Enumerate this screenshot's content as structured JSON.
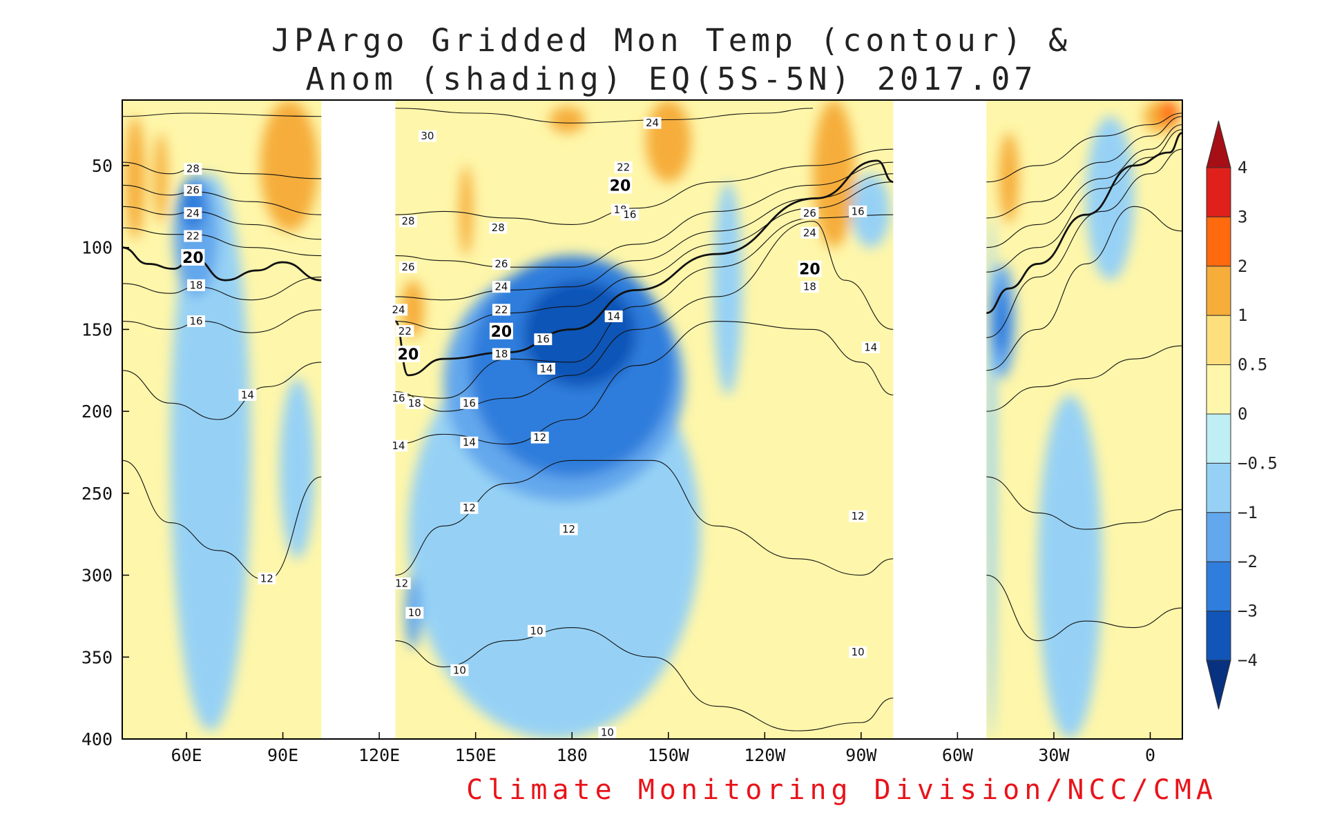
{
  "chart_data": {
    "type": "heatmap",
    "title_lines": [
      "JPArgo Gridded Mon Temp (contour) &",
      "Anom (shading) EQ(5S-5N) 2017.07"
    ],
    "credit": "Climate Monitoring Division/NCC/CMA",
    "x_axis": {
      "ticks": [
        {
          "lon": 60,
          "label": "60E"
        },
        {
          "lon": 90,
          "label": "90E"
        },
        {
          "lon": 120,
          "label": "120E"
        },
        {
          "lon": 150,
          "label": "150E"
        },
        {
          "lon": 180,
          "label": "180"
        },
        {
          "lon": 210,
          "label": "150W"
        },
        {
          "lon": 240,
          "label": "120W"
        },
        {
          "lon": 270,
          "label": "90W"
        },
        {
          "lon": 300,
          "label": "60W"
        },
        {
          "lon": 330,
          "label": "30W"
        },
        {
          "lon": 360,
          "label": "0"
        }
      ],
      "range": [
        40,
        370
      ],
      "land_gaps_lon": [
        [
          102,
          125
        ],
        [
          280,
          309
        ]
      ]
    },
    "y_axis": {
      "ticks": [
        50,
        100,
        150,
        200,
        250,
        300,
        350,
        400
      ],
      "range": [
        10,
        400
      ],
      "inverted": true
    },
    "colorbar": {
      "labels": [
        "4",
        "3",
        "2",
        "1",
        "0.5",
        "0",
        "−0.5",
        "−1",
        "−2",
        "−3",
        "−4"
      ],
      "colors": [
        "#a50f15",
        "#e0201b",
        "#ff6a0f",
        "#f6ad3a",
        "#fddf7e",
        "#fef6aa",
        "#bfeef5",
        "#96d1f5",
        "#63a7ec",
        "#2f7ddc",
        "#1055b7",
        "#08317f"
      ]
    },
    "contours": {
      "levels": [
        30,
        28,
        26,
        24,
        22,
        20,
        18,
        16,
        14,
        12,
        10
      ],
      "labels": [
        {
          "text": "30",
          "lon": 135,
          "depth": 32
        },
        {
          "text": "28",
          "lon": 62,
          "depth": 52
        },
        {
          "text": "26",
          "lon": 62,
          "depth": 65
        },
        {
          "text": "24",
          "lon": 62,
          "depth": 79
        },
        {
          "text": "22",
          "lon": 62,
          "depth": 93
        },
        {
          "text": "20",
          "lon": 62,
          "depth": 106
        },
        {
          "text": "18",
          "lon": 63,
          "depth": 123
        },
        {
          "text": "16",
          "lon": 63,
          "depth": 145
        },
        {
          "text": "14",
          "lon": 79,
          "depth": 190
        },
        {
          "text": "12",
          "lon": 85,
          "depth": 302
        },
        {
          "text": "28",
          "lon": 129,
          "depth": 84
        },
        {
          "text": "26",
          "lon": 129,
          "depth": 112
        },
        {
          "text": "24",
          "lon": 126,
          "depth": 138
        },
        {
          "text": "22",
          "lon": 128,
          "depth": 151
        },
        {
          "text": "20",
          "lon": 129,
          "depth": 165
        },
        {
          "text": "16",
          "lon": 126,
          "depth": 192
        },
        {
          "text": "18",
          "lon": 131,
          "depth": 195
        },
        {
          "text": "14",
          "lon": 126,
          "depth": 221
        },
        {
          "text": "12",
          "lon": 127,
          "depth": 305
        },
        {
          "text": "10",
          "lon": 131,
          "depth": 323
        },
        {
          "text": "10",
          "lon": 145,
          "depth": 358
        },
        {
          "text": "16",
          "lon": 148,
          "depth": 195
        },
        {
          "text": "14",
          "lon": 148,
          "depth": 219
        },
        {
          "text": "12",
          "lon": 148,
          "depth": 259
        },
        {
          "text": "28",
          "lon": 157,
          "depth": 88
        },
        {
          "text": "26",
          "lon": 158,
          "depth": 110
        },
        {
          "text": "24",
          "lon": 158,
          "depth": 124
        },
        {
          "text": "22",
          "lon": 158,
          "depth": 138
        },
        {
          "text": "20",
          "lon": 158,
          "depth": 151
        },
        {
          "text": "18",
          "lon": 158,
          "depth": 165
        },
        {
          "text": "16",
          "lon": 171,
          "depth": 156
        },
        {
          "text": "14",
          "lon": 172,
          "depth": 174
        },
        {
          "text": "12",
          "lon": 170,
          "depth": 216
        },
        {
          "text": "10",
          "lon": 169,
          "depth": 334
        },
        {
          "text": "24",
          "lon": 205,
          "depth": 24
        },
        {
          "text": "22",
          "lon": 196,
          "depth": 51
        },
        {
          "text": "20",
          "lon": 195,
          "depth": 62
        },
        {
          "text": "18",
          "lon": 195,
          "depth": 77
        },
        {
          "text": "16",
          "lon": 198,
          "depth": 80
        },
        {
          "text": "14",
          "lon": 193,
          "depth": 142
        },
        {
          "text": "12",
          "lon": 179,
          "depth": 272
        },
        {
          "text": "10",
          "lon": 191,
          "depth": 396
        },
        {
          "text": "26",
          "lon": 254,
          "depth": 79
        },
        {
          "text": "24",
          "lon": 254,
          "depth": 91
        },
        {
          "text": "20",
          "lon": 254,
          "depth": 113
        },
        {
          "text": "18",
          "lon": 254,
          "depth": 124
        },
        {
          "text": "16",
          "lon": 269,
          "depth": 78
        },
        {
          "text": "14",
          "lon": 273,
          "depth": 161
        },
        {
          "text": "12",
          "lon": 269,
          "depth": 264
        },
        {
          "text": "10",
          "lon": 269,
          "depth": 347
        }
      ]
    },
    "anomaly_regions": [
      {
        "level": 1,
        "lon": [
          41,
          47
        ],
        "depth": [
          20,
          95
        ]
      },
      {
        "level": 1,
        "lon": [
          50,
          54
        ],
        "depth": [
          30,
          85
        ]
      },
      {
        "level": 1,
        "lon": [
          83,
          101
        ],
        "depth": [
          10,
          90
        ]
      },
      {
        "level": 1,
        "lon": [
          127,
          134
        ],
        "depth": [
          120,
          155
        ]
      },
      {
        "level": 1,
        "lon": [
          145,
          149
        ],
        "depth": [
          50,
          105
        ]
      },
      {
        "level": 1,
        "lon": [
          173,
          184
        ],
        "depth": [
          14,
          30
        ]
      },
      {
        "level": 1,
        "lon": [
          203,
          217
        ],
        "depth": [
          10,
          60
        ]
      },
      {
        "level": 1,
        "lon": [
          255,
          268
        ],
        "depth": [
          10,
          100
        ]
      },
      {
        "level": 1,
        "lon": [
          313,
          319
        ],
        "depth": [
          30,
          85
        ]
      },
      {
        "level": 1,
        "lon": [
          358,
          369
        ],
        "depth": [
          10,
          30
        ]
      },
      {
        "level": 2,
        "lon": [
          363,
          369
        ],
        "depth": [
          10,
          25
        ]
      },
      {
        "level": -0.5,
        "lon": [
          55,
          80
        ],
        "depth": [
          55,
          395
        ]
      },
      {
        "level": -0.5,
        "lon": [
          89,
          100
        ],
        "depth": [
          180,
          290
        ]
      },
      {
        "level": -0.5,
        "lon": [
          129,
          220
        ],
        "depth": [
          150,
          400
        ]
      },
      {
        "level": -0.5,
        "lon": [
          224,
          233
        ],
        "depth": [
          60,
          190
        ]
      },
      {
        "level": -0.5,
        "lon": [
          267,
          279
        ],
        "depth": [
          55,
          100
        ]
      },
      {
        "level": -0.5,
        "lon": [
          309,
          312
        ],
        "depth": [
          80,
          400
        ]
      },
      {
        "level": -0.5,
        "lon": [
          325,
          345
        ],
        "depth": [
          190,
          400
        ]
      },
      {
        "level": -0.5,
        "lon": [
          340,
          355
        ],
        "depth": [
          20,
          120
        ]
      },
      {
        "level": -1,
        "lon": [
          56,
          70
        ],
        "depth": [
          55,
          130
        ]
      },
      {
        "level": -1,
        "lon": [
          140,
          215
        ],
        "depth": [
          110,
          255
        ]
      },
      {
        "level": -1,
        "lon": [
          128,
          133
        ],
        "depth": [
          300,
          345
        ]
      },
      {
        "level": -1,
        "lon": [
          310,
          318
        ],
        "depth": [
          110,
          180
        ]
      },
      {
        "level": -2,
        "lon": [
          58,
          66
        ],
        "depth": [
          60,
          90
        ]
      },
      {
        "level": -2,
        "lon": [
          148,
          212
        ],
        "depth": [
          105,
          240
        ]
      },
      {
        "level": -2,
        "lon": [
          311,
          316
        ],
        "depth": [
          125,
          165
        ]
      },
      {
        "level": -3,
        "lon": [
          165,
          200
        ],
        "depth": [
          120,
          185
        ]
      }
    ]
  }
}
